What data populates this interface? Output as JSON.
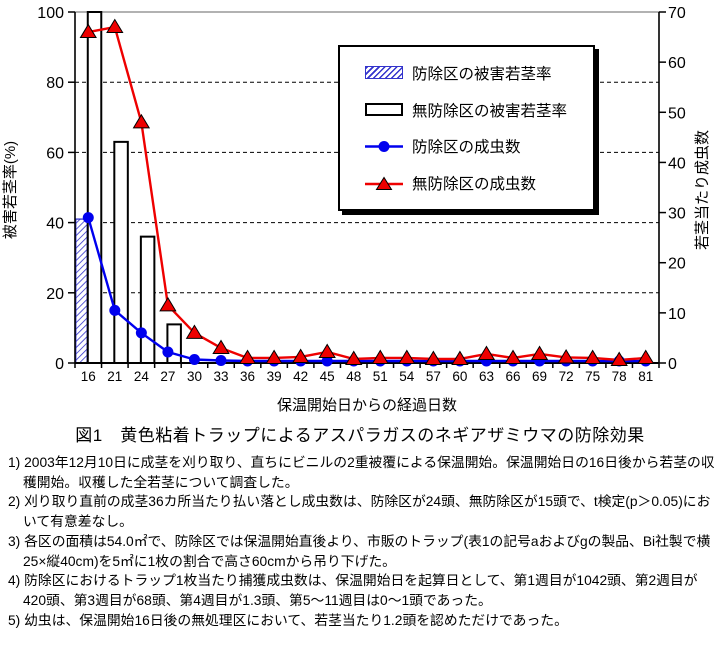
{
  "figure": {
    "caption": "図1　黄色粘着トラップによるアスパラガスのネギアザミウマの防除効果",
    "footnotes": [
      "1) 2003年12月10日に成茎を刈り取り、直ちにビニルの2重被覆による保温開始。保温開始日の16日後から若茎の収穫開始。収穫した全若茎について調査した。",
      "2) 刈り取り直前の成茎36カ所当たり払い落とし成虫数は、防除区が24頭、無防除区が15頭で、t検定(p＞0.05)において有意差なし。",
      "3) 各区の面積は54.0㎡で、防除区では保温開始直後より、市販のトラップ(表1の記号aおよびgの製品、Bi社製で横25×縦40cm)を5㎡に1枚の割合で高さ60cmから吊り下げた。",
      "4) 防除区におけるトラップ1枚当たり捕獲成虫数は、保温開始日を起算日として、第1週目が1042頭、第2週目が420頭、第3週目が68頭、第4週目が1.3頭、第5～11週目は0～1頭であった。",
      "5) 幼虫は、保温開始16日後の無処理区において、若茎当たり1.2頭を認めただけであった。"
    ]
  },
  "legend": {
    "position": "upper-right-overlay",
    "items": [
      {
        "label": "防除区の被害若茎率",
        "swatch": "blue-hatched-bar"
      },
      {
        "label": "無防除区の被害若茎率",
        "swatch": "open-white-bar"
      },
      {
        "label": "防除区の成虫数",
        "swatch": "blue-line-circle-marker"
      },
      {
        "label": "無防除区の成虫数",
        "swatch": "red-line-triangle-marker"
      }
    ]
  },
  "chart_data": {
    "type": "combo-bar-line",
    "title": "図1　黄色粘着トラップによるアスパラガスのネギアザミウマの防除効果",
    "xlabel": "保温開始日からの経過日数",
    "categories": [
      16,
      21,
      24,
      27,
      30,
      33,
      36,
      39,
      42,
      45,
      48,
      51,
      54,
      57,
      60,
      63,
      66,
      69,
      72,
      75,
      78,
      81
    ],
    "left_axis": {
      "label": "被害若茎率(%)",
      "range": [
        0,
        100
      ],
      "ticks": [
        0,
        20,
        40,
        60,
        80,
        100
      ]
    },
    "right_axis": {
      "label": "若茎当たり成虫数",
      "range": [
        0,
        70
      ],
      "ticks": [
        0,
        10,
        20,
        30,
        40,
        50,
        60,
        70
      ]
    },
    "grid": "horizontal dashed at 20/40/60/80, solid gray line at 100",
    "series": [
      {
        "name": "防除区の被害若茎率",
        "type": "bar",
        "style": "hatched",
        "axis": "left",
        "values": [
          41,
          0,
          0,
          0,
          0,
          0,
          0,
          0,
          0,
          0,
          0,
          0,
          0,
          0,
          0,
          0,
          0,
          0,
          0,
          0,
          0,
          0
        ]
      },
      {
        "name": "無防除区の被害若茎率",
        "type": "bar",
        "style": "open",
        "axis": "left",
        "values": [
          100,
          63,
          36,
          11,
          0,
          0,
          0,
          0,
          0,
          0,
          0,
          0,
          0,
          0,
          0,
          0,
          0,
          0,
          0,
          0,
          0,
          0
        ]
      },
      {
        "name": "防除区の成虫数",
        "type": "line",
        "marker": "circle",
        "axis": "right",
        "values": [
          29,
          10.5,
          6,
          2.2,
          0.7,
          0.5,
          0.4,
          0.4,
          0.4,
          0.4,
          0.4,
          0.4,
          0.4,
          0.4,
          0.4,
          0.4,
          0.4,
          0.4,
          0.4,
          0.4,
          0.4,
          0.4
        ]
      },
      {
        "name": "無防除区の成虫数",
        "type": "line",
        "marker": "triangle",
        "axis": "right",
        "values": [
          66,
          67,
          48,
          11.5,
          6,
          3,
          1,
          1,
          1.2,
          2.2,
          0.8,
          1,
          1,
          0.8,
          0.8,
          1.8,
          1,
          1.8,
          1.1,
          1,
          0.6,
          1
        ]
      }
    ],
    "colors": {
      "control_series": "#0000EE",
      "untreated_series": "#EE0000",
      "hatch": "#3333CC",
      "bar_outline": "#000000",
      "grid": "#000000",
      "plot_top_line": "#999999"
    }
  }
}
